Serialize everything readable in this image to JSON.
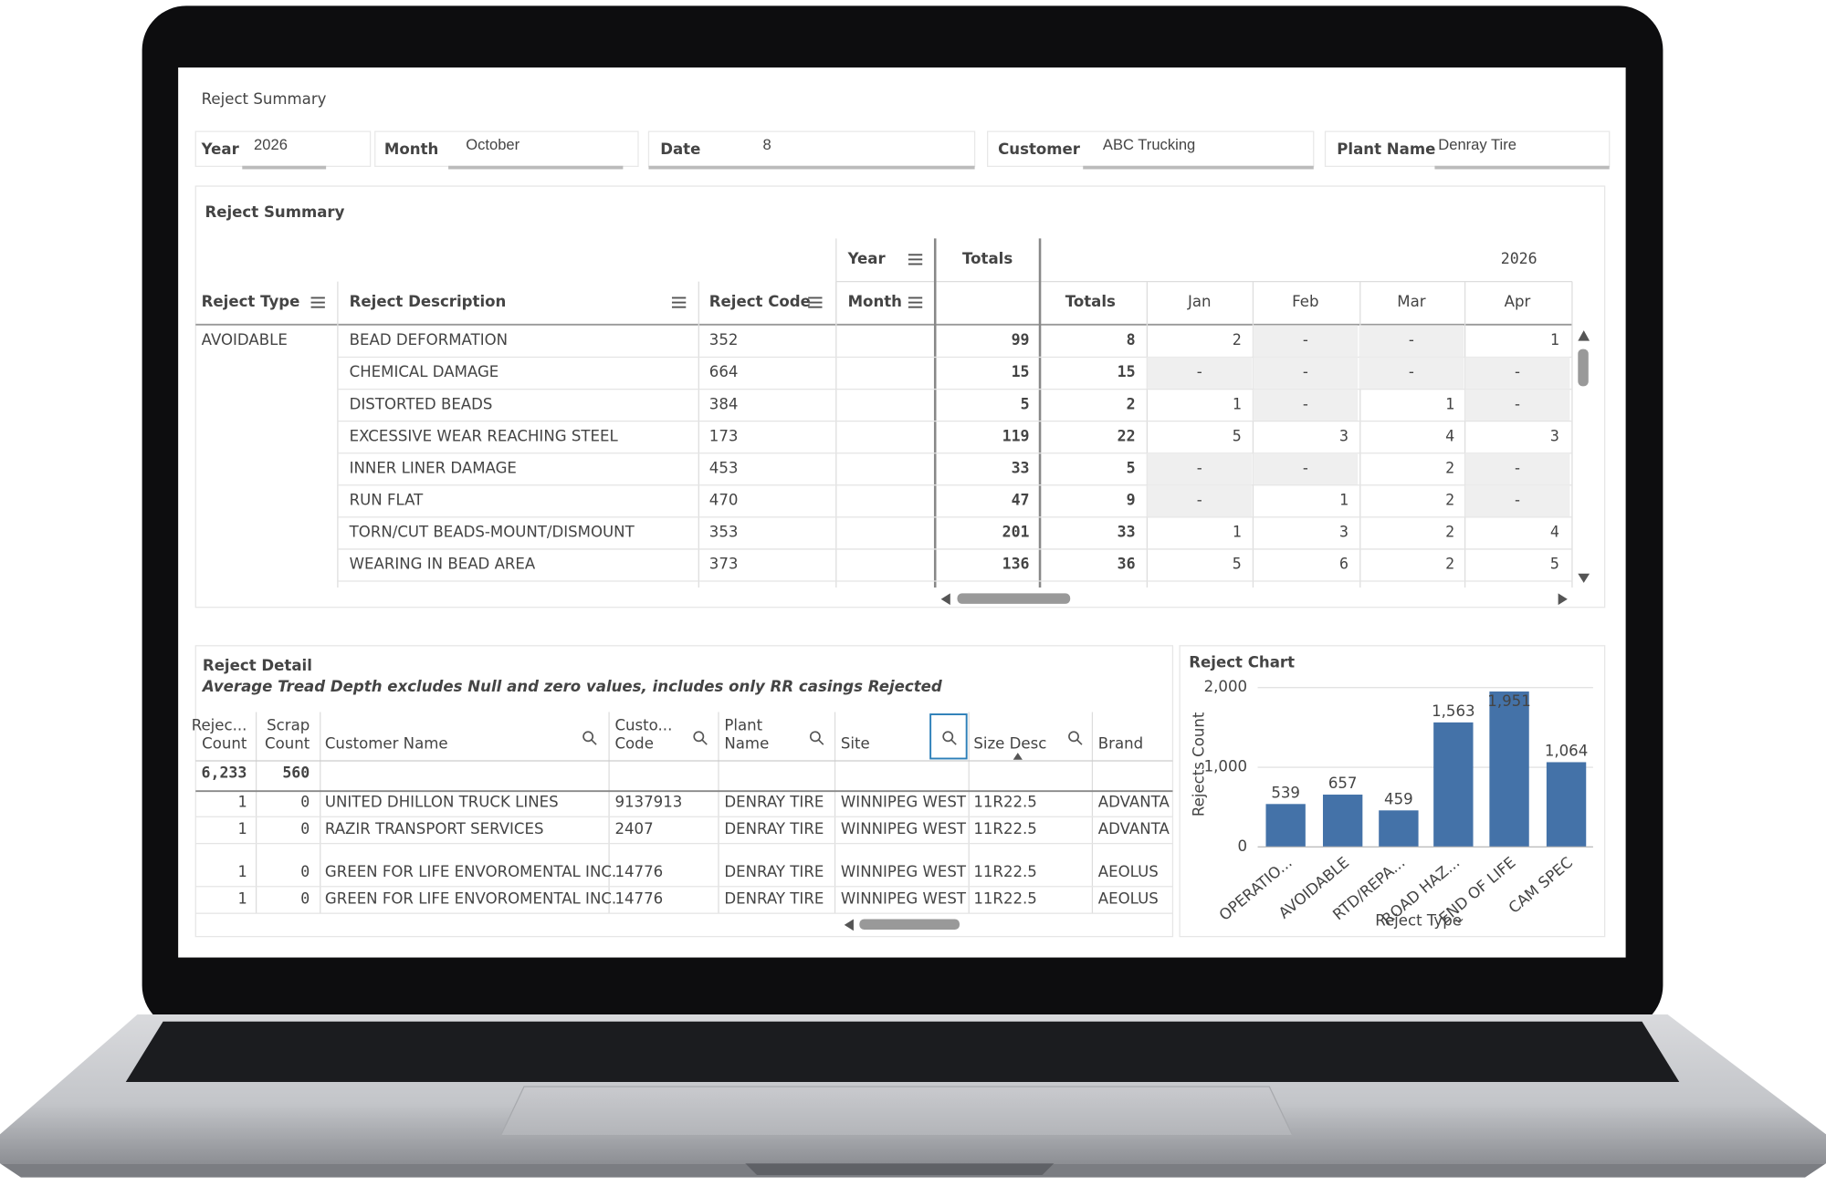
{
  "header": {
    "title": "Reject Summary"
  },
  "filters": [
    {
      "label": "Year",
      "value": "2026"
    },
    {
      "label": "Month",
      "value": "October"
    },
    {
      "label": "Date",
      "value": "8"
    },
    {
      "label": "Customer",
      "value": "ABC Trucking"
    },
    {
      "label": "Plant Name",
      "value": "Denray Tire"
    }
  ],
  "summary": {
    "title": "Reject Summary",
    "top_headers": [
      "Year",
      "Totals",
      "2026"
    ],
    "columns": [
      "Reject Type",
      "Reject Description",
      "Reject Code",
      "Month",
      "Totals",
      "Jan",
      "Feb",
      "Mar",
      "Apr"
    ],
    "group": "AVOIDABLE",
    "rows": [
      [
        "BEAD DEFORMATION",
        "352",
        "99",
        "8",
        "2",
        "-",
        "-",
        "1"
      ],
      [
        "CHEMICAL DAMAGE",
        "664",
        "15",
        "15",
        "-",
        "-",
        "-",
        "-"
      ],
      [
        "DISTORTED BEADS",
        "384",
        "5",
        "2",
        "1",
        "-",
        "1",
        "-"
      ],
      [
        "EXCESSIVE WEAR REACHING STEEL",
        "173",
        "119",
        "22",
        "5",
        "3",
        "4",
        "3"
      ],
      [
        "INNER LINER DAMAGE",
        "453",
        "33",
        "5",
        "-",
        "-",
        "2",
        "-"
      ],
      [
        "RUN FLAT",
        "470",
        "47",
        "9",
        "-",
        "1",
        "2",
        "-"
      ],
      [
        "TORN/CUT BEADS-MOUNT/DISMOUNT",
        "353",
        "201",
        "33",
        "1",
        "3",
        "2",
        "4"
      ],
      [
        "WEARING IN BEAD AREA",
        "373",
        "136",
        "36",
        "5",
        "6",
        "2",
        "5"
      ]
    ]
  },
  "detail": {
    "title": "Reject Detail",
    "note": "Average Tread Depth excludes Null and zero values, includes only RR casings Rejected",
    "columns": [
      [
        "Rejec...",
        "Count"
      ],
      [
        "Scrap",
        "Count"
      ],
      [
        "Customer Name"
      ],
      [
        "Custo...",
        "Code"
      ],
      [
        "Plant",
        "Name"
      ],
      [
        "Site"
      ],
      [
        "Size Desc"
      ],
      [
        "Brand"
      ]
    ],
    "totals": [
      "6,233",
      "560"
    ],
    "rows": [
      [
        "1",
        "0",
        "UNITED DHILLON TRUCK LINES",
        "9137913",
        "DENRAY TIRE",
        "WINNIPEG WEST",
        "11R22.5",
        "ADVANTA"
      ],
      [
        "1",
        "0",
        "RAZIR TRANSPORT SERVICES",
        "2407",
        "DENRAY TIRE",
        "WINNIPEG WEST",
        "11R22.5",
        "ADVANTA"
      ],
      [
        "1",
        "0",
        "GREEN FOR LIFE ENVOROMENTAL INC.",
        "14776",
        "DENRAY TIRE",
        "WINNIPEG WEST",
        "11R22.5",
        "AEOLUS"
      ],
      [
        "1",
        "0",
        "GREEN FOR LIFE ENVOROMENTAL INC.",
        "14776",
        "DENRAY TIRE",
        "WINNIPEG WEST",
        "11R22.5",
        "AEOLUS"
      ]
    ]
  },
  "reject_chart": {
    "type": "bar",
    "title": "Reject Chart",
    "y_label": "Rejects Count",
    "x_label": "Reject Type",
    "categories": [
      "OPERATIO...",
      "AVOIDABLE",
      "RTD/REPA...",
      "ROAD HAZ...",
      "END OF LIFE",
      "CAM SPEC"
    ],
    "values": [
      539,
      657,
      459,
      1563,
      1951,
      1064
    ],
    "value_labels": [
      "539",
      "657",
      "459",
      "1,563",
      "1,951",
      "1,064"
    ],
    "color": "#4472a8",
    "ylim": [
      0,
      2000
    ],
    "yticks": [
      0,
      {
        "value": 1000,
        "label": "1,000"
      },
      {
        "value": 2000,
        "label": "2,000"
      }
    ]
  }
}
